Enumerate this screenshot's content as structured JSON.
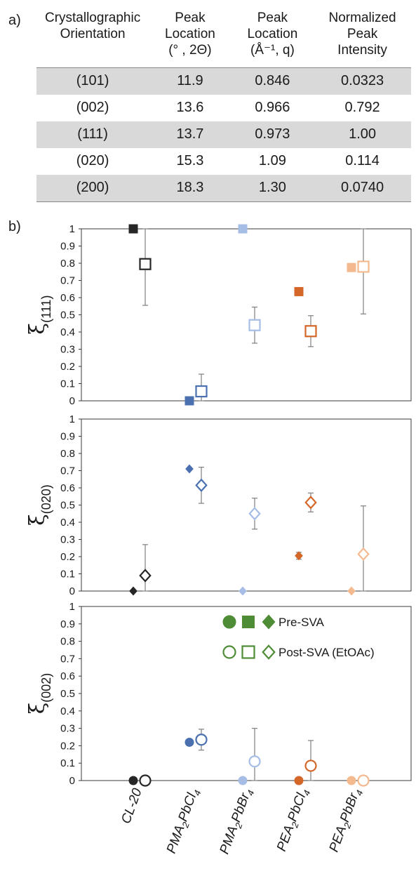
{
  "panel_labels": {
    "a": "a)",
    "b": "b)"
  },
  "table": {
    "headers": [
      [
        "Crystallographic",
        "Orientation",
        ""
      ],
      [
        "Peak",
        "Location",
        "(° , 2Θ)"
      ],
      [
        "Peak",
        "Location",
        "(Å⁻¹, q)"
      ],
      [
        "Normalized",
        "Peak",
        "Intensity"
      ]
    ],
    "rows": [
      [
        "(101)",
        "11.9",
        "0.846",
        "0.0323"
      ],
      [
        "(002)",
        "13.6",
        "0.966",
        "0.792"
      ],
      [
        "(111)",
        "13.7",
        "0.973",
        "1.00"
      ],
      [
        "(020)",
        "15.3",
        "1.09",
        "0.114"
      ],
      [
        "(200)",
        "18.3",
        "1.30",
        "0.0740"
      ]
    ]
  },
  "colors": {
    "CL-20": "#262626",
    "PMA2PbCl4": "#4a70b0",
    "PMA2PbBr4": "#a6bde6",
    "PEA2PbCl4": "#d46628",
    "PEA2PbBr4": "#f4b98e",
    "legend": "#4e8c36",
    "errorbar": "#7f7f7f"
  },
  "chart_data": [
    {
      "type": "scatter",
      "ylabel_main": "ξ",
      "ylabel_sub": "(111)",
      "ylim": [
        0,
        1
      ],
      "yticks": [
        "0",
        "0.1",
        "0.2",
        "0.3",
        "0.4",
        "0.5",
        "0.6",
        "0.7",
        "0.8",
        "0.9",
        "1"
      ],
      "marker": "square",
      "categories": [
        "CL-20",
        "PMA2PbCl4",
        "PMA2PbBr4",
        "PEA2PbCl4",
        "PEA2PbBr4"
      ],
      "series": [
        {
          "name": "Pre-SVA",
          "filled": true,
          "values": [
            1.0,
            0.0,
            1.0,
            0.635,
            0.775
          ],
          "errors": [
            0,
            0,
            0,
            0.02,
            0.015
          ]
        },
        {
          "name": "Post-SVA (EtOAc)",
          "filled": false,
          "values": [
            0.795,
            0.055,
            0.44,
            0.405,
            0.78
          ],
          "errors": [
            0.24,
            0.1,
            0.105,
            0.09,
            0.275
          ]
        }
      ]
    },
    {
      "type": "scatter",
      "ylabel_main": "ξ",
      "ylabel_sub": "(020)",
      "ylim": [
        0,
        1
      ],
      "yticks": [
        "0",
        "0.1",
        "0.2",
        "0.3",
        "0.4",
        "0.5",
        "0.6",
        "0.7",
        "0.8",
        "0.9",
        "1"
      ],
      "marker": "diamond",
      "categories": [
        "CL-20",
        "PMA2PbCl4",
        "PMA2PbBr4",
        "PEA2PbCl4",
        "PEA2PbBr4"
      ],
      "series": [
        {
          "name": "Pre-SVA",
          "filled": true,
          "values": [
            0.0,
            0.71,
            0.0,
            0.205,
            0.0
          ],
          "errors": [
            0,
            0,
            0,
            0.02,
            0
          ]
        },
        {
          "name": "Post-SVA (EtOAc)",
          "filled": false,
          "values": [
            0.09,
            0.615,
            0.45,
            0.515,
            0.215
          ],
          "errors": [
            0.18,
            0.105,
            0.09,
            0.055,
            0.28
          ]
        }
      ]
    },
    {
      "type": "scatter",
      "ylabel_main": "ξ",
      "ylabel_sub": "(002)",
      "ylim": [
        0,
        1
      ],
      "yticks": [
        "0",
        "0.1",
        "0.2",
        "0.3",
        "0.4",
        "0.5",
        "0.6",
        "0.7",
        "0.8",
        "0.9",
        "1"
      ],
      "marker": "circle",
      "categories": [
        "CL-20",
        "PMA2PbCl4",
        "PMA2PbBr4",
        "PEA2PbCl4",
        "PEA2PbBr4"
      ],
      "series": [
        {
          "name": "Pre-SVA",
          "filled": true,
          "values": [
            0.0,
            0.22,
            0.0,
            0.0,
            0.0
          ],
          "errors": [
            0,
            0.015,
            0,
            0,
            0
          ]
        },
        {
          "name": "Post-SVA (EtOAc)",
          "filled": false,
          "values": [
            0.0,
            0.235,
            0.11,
            0.085,
            0.0
          ],
          "errors": [
            0,
            0.06,
            0.19,
            0.145,
            0
          ]
        }
      ],
      "legend": {
        "placement": "top-right",
        "entries": [
          {
            "label": "Pre-SVA",
            "filled": true
          },
          {
            "label": "Post-SVA (EtOAc)",
            "filled": false
          }
        ]
      }
    }
  ],
  "x_axis_labels": [
    {
      "prefix": "CL-20",
      "parts": []
    },
    {
      "parts": [
        [
          "PMA",
          false
        ],
        [
          "2",
          true
        ],
        [
          "PbCl",
          false
        ],
        [
          "4",
          true
        ]
      ]
    },
    {
      "parts": [
        [
          "PMA",
          false
        ],
        [
          "2",
          true
        ],
        [
          "PbBr",
          false
        ],
        [
          "4",
          true
        ]
      ]
    },
    {
      "parts": [
        [
          "PEA",
          false
        ],
        [
          "2",
          true
        ],
        [
          "PbCl",
          false
        ],
        [
          "4",
          true
        ]
      ]
    },
    {
      "parts": [
        [
          "PEA",
          false
        ],
        [
          "2",
          true
        ],
        [
          "PbBr",
          false
        ],
        [
          "4",
          true
        ]
      ]
    }
  ]
}
